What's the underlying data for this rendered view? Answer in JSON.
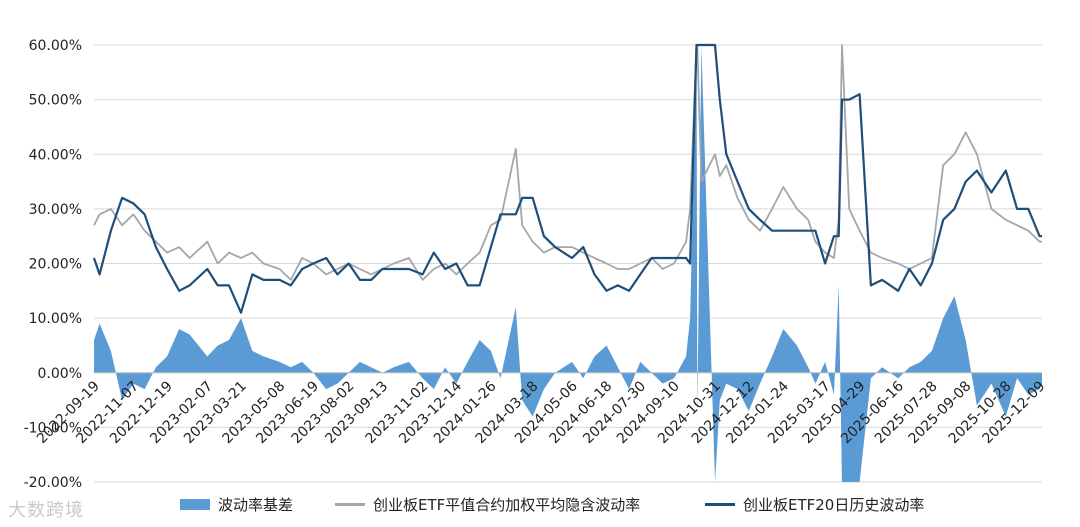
{
  "chart_data": {
    "type": "line",
    "title": "",
    "xlabel": "",
    "ylabel": "",
    "ylim": [
      -0.2,
      0.6
    ],
    "yticks": [
      "-20.00%",
      "-10.00%",
      "0.00%",
      "10.00%",
      "20.00%",
      "30.00%",
      "40.00%",
      "50.00%",
      "60.00%"
    ],
    "yticks_values": [
      -0.2,
      -0.1,
      0.0,
      0.1,
      0.2,
      0.3,
      0.4,
      0.5,
      0.6
    ],
    "x_start": "2022-09-19",
    "x_end": "2025-12-12",
    "xticks": [
      "2022-09-19",
      "2022-11-07",
      "2022-12-19",
      "2023-02-07",
      "2023-03-21",
      "2023-05-08",
      "2023-06-19",
      "2023-08-02",
      "2023-09-13",
      "2023-11-02",
      "2023-12-14",
      "2024-01-26",
      "2024-03-18",
      "2024-05-06",
      "2024-06-18",
      "2024-07-30",
      "2024-09-10",
      "2024-10-31",
      "2024-12-12",
      "2025-01-24",
      "2025-03-17",
      "2025-04-29",
      "2025-06-16",
      "2025-07-28",
      "2025-09-08",
      "2025-10-28",
      "2025-12-09"
    ],
    "legend_position": "bottom",
    "grid": "horizontal",
    "series": [
      {
        "name": "波动率基差",
        "type": "area",
        "color": "#5b9bd5",
        "x": [
          "2022-09-19",
          "2022-09-26",
          "2022-10-10",
          "2022-10-24",
          "2022-11-07",
          "2022-11-21",
          "2022-12-05",
          "2022-12-19",
          "2023-01-03",
          "2023-01-16",
          "2023-02-07",
          "2023-02-20",
          "2023-03-06",
          "2023-03-21",
          "2023-04-04",
          "2023-04-18",
          "2023-05-08",
          "2023-05-22",
          "2023-06-05",
          "2023-06-19",
          "2023-07-05",
          "2023-07-19",
          "2023-08-02",
          "2023-08-16",
          "2023-08-30",
          "2023-09-13",
          "2023-09-27",
          "2023-10-16",
          "2023-11-02",
          "2023-11-16",
          "2023-11-30",
          "2023-12-14",
          "2023-12-28",
          "2024-01-12",
          "2024-01-26",
          "2024-02-07",
          "2024-02-26",
          "2024-03-05",
          "2024-03-18",
          "2024-04-01",
          "2024-04-15",
          "2024-05-06",
          "2024-05-20",
          "2024-06-03",
          "2024-06-18",
          "2024-07-02",
          "2024-07-16",
          "2024-07-30",
          "2024-08-13",
          "2024-08-27",
          "2024-09-10",
          "2024-09-25",
          "2024-09-30",
          "2024-10-08",
          "2024-10-09",
          "2024-10-14",
          "2024-10-31",
          "2024-11-06",
          "2024-11-14",
          "2024-11-28",
          "2024-12-12",
          "2024-12-26",
          "2025-01-10",
          "2025-01-24",
          "2025-02-10",
          "2025-02-24",
          "2025-03-05",
          "2025-03-17",
          "2025-03-28",
          "2025-04-03",
          "2025-04-07",
          "2025-04-16",
          "2025-04-29",
          "2025-05-13",
          "2025-05-27",
          "2025-06-16",
          "2025-06-30",
          "2025-07-14",
          "2025-07-28",
          "2025-08-11",
          "2025-08-25",
          "2025-09-08",
          "2025-09-22",
          "2025-10-10",
          "2025-10-28",
          "2025-11-11",
          "2025-11-25",
          "2025-12-09",
          "2025-12-12"
        ],
        "values": [
          0.06,
          0.09,
          0.04,
          -0.05,
          -0.02,
          -0.03,
          0.01,
          0.03,
          0.08,
          0.07,
          0.03,
          0.05,
          0.06,
          0.1,
          0.04,
          0.03,
          0.02,
          0.01,
          0.02,
          0.0,
          -0.03,
          -0.02,
          0.0,
          0.02,
          0.01,
          0.0,
          0.01,
          0.02,
          -0.01,
          -0.03,
          0.01,
          -0.02,
          0.02,
          0.06,
          0.04,
          -0.01,
          0.12,
          -0.05,
          -0.08,
          -0.03,
          0.0,
          0.02,
          -0.01,
          0.03,
          0.05,
          0.01,
          -0.03,
          0.02,
          0.0,
          -0.02,
          -0.01,
          0.03,
          0.1,
          0.6,
          -0.08,
          0.6,
          -0.22,
          -0.05,
          -0.02,
          -0.03,
          -0.07,
          -0.02,
          0.03,
          0.08,
          0.05,
          0.01,
          -0.02,
          0.02,
          -0.04,
          0.16,
          -0.22,
          -0.22,
          -0.22,
          -0.01,
          0.01,
          -0.01,
          0.01,
          0.02,
          0.04,
          0.1,
          0.14,
          0.06,
          -0.06,
          -0.02,
          -0.08,
          -0.01,
          -0.04,
          -0.03,
          -0.02
        ]
      },
      {
        "name": "创业板ETF平值合约加权平均隐含波动率",
        "type": "line",
        "color": "#a6a6a6",
        "x": [
          "2022-09-19",
          "2022-09-26",
          "2022-10-10",
          "2022-10-24",
          "2022-11-07",
          "2022-11-21",
          "2022-12-05",
          "2022-12-19",
          "2023-01-03",
          "2023-01-16",
          "2023-02-07",
          "2023-02-20",
          "2023-03-06",
          "2023-03-21",
          "2023-04-04",
          "2023-04-18",
          "2023-05-08",
          "2023-05-22",
          "2023-06-05",
          "2023-06-19",
          "2023-07-05",
          "2023-07-19",
          "2023-08-02",
          "2023-08-16",
          "2023-08-30",
          "2023-09-13",
          "2023-09-27",
          "2023-10-16",
          "2023-11-02",
          "2023-11-16",
          "2023-11-30",
          "2023-12-14",
          "2023-12-28",
          "2024-01-12",
          "2024-01-26",
          "2024-02-07",
          "2024-02-26",
          "2024-03-05",
          "2024-03-18",
          "2024-04-01",
          "2024-04-15",
          "2024-05-06",
          "2024-05-20",
          "2024-06-03",
          "2024-06-18",
          "2024-07-02",
          "2024-07-16",
          "2024-07-30",
          "2024-08-13",
          "2024-08-27",
          "2024-09-10",
          "2024-09-25",
          "2024-09-30",
          "2024-10-08",
          "2024-10-09",
          "2024-10-14",
          "2024-10-31",
          "2024-11-06",
          "2024-11-14",
          "2024-11-28",
          "2024-12-12",
          "2024-12-26",
          "2025-01-10",
          "2025-01-24",
          "2025-02-10",
          "2025-02-24",
          "2025-03-05",
          "2025-03-17",
          "2025-03-28",
          "2025-04-03",
          "2025-04-07",
          "2025-04-16",
          "2025-04-29",
          "2025-05-13",
          "2025-05-27",
          "2025-06-16",
          "2025-06-30",
          "2025-07-14",
          "2025-07-28",
          "2025-08-11",
          "2025-08-25",
          "2025-09-08",
          "2025-09-22",
          "2025-10-10",
          "2025-10-28",
          "2025-11-11",
          "2025-11-25",
          "2025-12-09",
          "2025-12-12"
        ],
        "values": [
          0.27,
          0.29,
          0.3,
          0.27,
          0.29,
          0.26,
          0.24,
          0.22,
          0.23,
          0.21,
          0.24,
          0.2,
          0.22,
          0.21,
          0.22,
          0.2,
          0.19,
          0.17,
          0.21,
          0.2,
          0.18,
          0.19,
          0.2,
          0.19,
          0.18,
          0.19,
          0.2,
          0.21,
          0.17,
          0.19,
          0.2,
          0.18,
          0.2,
          0.22,
          0.27,
          0.28,
          0.41,
          0.27,
          0.24,
          0.22,
          0.23,
          0.23,
          0.22,
          0.21,
          0.2,
          0.19,
          0.19,
          0.2,
          0.21,
          0.19,
          0.2,
          0.24,
          0.3,
          0.6,
          0.6,
          0.35,
          0.4,
          0.36,
          0.38,
          0.32,
          0.28,
          0.26,
          0.3,
          0.34,
          0.3,
          0.28,
          0.24,
          0.22,
          0.21,
          0.28,
          0.6,
          0.3,
          0.26,
          0.22,
          0.21,
          0.2,
          0.19,
          0.2,
          0.21,
          0.38,
          0.4,
          0.44,
          0.4,
          0.3,
          0.28,
          0.27,
          0.26,
          0.24,
          0.24
        ]
      },
      {
        "name": "创业板ETF20日历史波动率",
        "type": "line",
        "color": "#1f4e79",
        "x": [
          "2022-09-19",
          "2022-09-26",
          "2022-10-10",
          "2022-10-24",
          "2022-11-07",
          "2022-11-21",
          "2022-12-05",
          "2022-12-19",
          "2023-01-03",
          "2023-01-16",
          "2023-02-07",
          "2023-02-20",
          "2023-03-06",
          "2023-03-21",
          "2023-04-04",
          "2023-04-18",
          "2023-05-08",
          "2023-05-22",
          "2023-06-05",
          "2023-06-19",
          "2023-07-05",
          "2023-07-19",
          "2023-08-02",
          "2023-08-16",
          "2023-08-30",
          "2023-09-13",
          "2023-09-27",
          "2023-10-16",
          "2023-11-02",
          "2023-11-16",
          "2023-11-30",
          "2023-12-14",
          "2023-12-28",
          "2024-01-12",
          "2024-01-26",
          "2024-02-07",
          "2024-02-26",
          "2024-03-05",
          "2024-03-18",
          "2024-04-01",
          "2024-04-15",
          "2024-05-06",
          "2024-05-20",
          "2024-06-03",
          "2024-06-18",
          "2024-07-02",
          "2024-07-16",
          "2024-07-30",
          "2024-08-13",
          "2024-08-27",
          "2024-09-10",
          "2024-09-25",
          "2024-09-30",
          "2024-10-08",
          "2024-10-09",
          "2024-10-14",
          "2024-10-31",
          "2024-11-06",
          "2024-11-14",
          "2024-11-28",
          "2024-12-12",
          "2024-12-26",
          "2025-01-10",
          "2025-01-24",
          "2025-02-10",
          "2025-02-24",
          "2025-03-05",
          "2025-03-17",
          "2025-03-28",
          "2025-04-03",
          "2025-04-07",
          "2025-04-16",
          "2025-04-29",
          "2025-05-13",
          "2025-05-27",
          "2025-06-16",
          "2025-06-30",
          "2025-07-14",
          "2025-07-28",
          "2025-08-11",
          "2025-08-25",
          "2025-09-08",
          "2025-09-22",
          "2025-10-10",
          "2025-10-28",
          "2025-11-11",
          "2025-11-25",
          "2025-12-09",
          "2025-12-12"
        ],
        "values": [
          0.21,
          0.18,
          0.26,
          0.32,
          0.31,
          0.29,
          0.23,
          0.19,
          0.15,
          0.16,
          0.19,
          0.16,
          0.16,
          0.11,
          0.18,
          0.17,
          0.17,
          0.16,
          0.19,
          0.2,
          0.21,
          0.18,
          0.2,
          0.17,
          0.17,
          0.19,
          0.19,
          0.19,
          0.18,
          0.22,
          0.19,
          0.2,
          0.16,
          0.16,
          0.23,
          0.29,
          0.29,
          0.32,
          0.32,
          0.25,
          0.23,
          0.21,
          0.23,
          0.18,
          0.15,
          0.16,
          0.15,
          0.18,
          0.21,
          0.21,
          0.21,
          0.21,
          0.2,
          0.6,
          0.6,
          0.6,
          0.6,
          0.5,
          0.4,
          0.35,
          0.3,
          0.28,
          0.26,
          0.26,
          0.26,
          0.26,
          0.26,
          0.2,
          0.25,
          0.25,
          0.5,
          0.5,
          0.51,
          0.16,
          0.17,
          0.15,
          0.19,
          0.16,
          0.2,
          0.28,
          0.3,
          0.35,
          0.37,
          0.33,
          0.37,
          0.3,
          0.3,
          0.25,
          0.25
        ]
      }
    ]
  },
  "watermark": "大数跨境"
}
